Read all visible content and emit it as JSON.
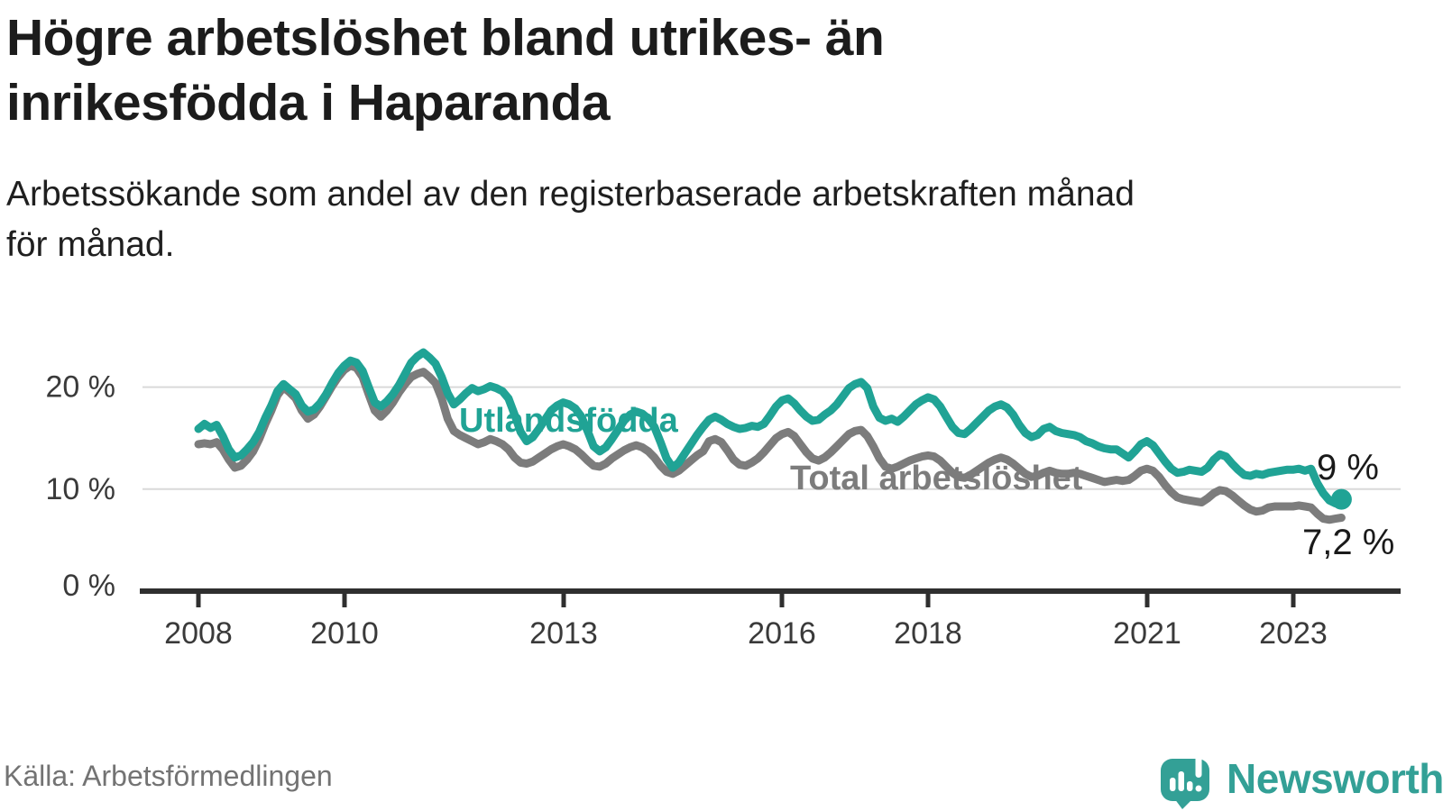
{
  "header": {
    "title_lines": [
      "Högre arbetslöshet bland utrikes- än",
      "inrikesfödda i Haparanda"
    ],
    "subtitle_lines": [
      "Arbetssökande som andel av den registerbaserade arbetskraften månad",
      "för månad."
    ]
  },
  "footer": {
    "source": "Källa: Arbetsförmedlingen",
    "brand": "Newsworthy"
  },
  "colors": {
    "teal_line": "#20a395",
    "gray_line": "#7c7c7c",
    "brand_teal": "#33a096",
    "axis": "#2f2f2f",
    "gridline": "#d9d9d9",
    "value_label": "#1a1a1a",
    "muted_text": "#737373"
  },
  "chart_data": {
    "type": "line",
    "title": "Högre arbetslöshet bland utrikes- än inrikesfödda i Haparanda",
    "subtitle": "Arbetssökande som andel av den registerbaserade arbetskraften månad för månad.",
    "xlabel": "",
    "ylabel": "",
    "x_start_year": 2008,
    "x_step_months": 1,
    "ylim": [
      0,
      26
    ],
    "grid": "horizontal",
    "y_ticks": [
      {
        "value": 0,
        "label": "0 %"
      },
      {
        "value": 10,
        "label": "10 %"
      },
      {
        "value": 20,
        "label": "20 %"
      }
    ],
    "x_ticks": [
      {
        "year": 2008,
        "label": "2008"
      },
      {
        "year": 2010,
        "label": "2010"
      },
      {
        "year": 2013,
        "label": "2013"
      },
      {
        "year": 2016,
        "label": "2016"
      },
      {
        "year": 2018,
        "label": "2018"
      },
      {
        "year": 2021,
        "label": "2021"
      },
      {
        "year": 2023,
        "label": "2023"
      }
    ],
    "series": [
      {
        "name": "Total arbetslöshet",
        "color": "#7c7c7c",
        "end_label": "7,2 %",
        "end_dot": false,
        "values": [
          14.4,
          14.5,
          14.4,
          14.6,
          13.9,
          12.9,
          12.1,
          12.3,
          12.9,
          13.7,
          14.9,
          16.4,
          17.7,
          19.2,
          20.0,
          19.5,
          18.9,
          17.7,
          16.9,
          17.3,
          18.1,
          19.1,
          20.1,
          21.0,
          21.7,
          22.1,
          21.9,
          21.0,
          19.3,
          17.7,
          17.1,
          17.7,
          18.5,
          19.5,
          20.3,
          21.0,
          21.3,
          21.5,
          21.0,
          20.4,
          18.9,
          16.9,
          15.7,
          15.3,
          15.0,
          14.7,
          14.4,
          14.6,
          14.9,
          14.7,
          14.4,
          13.9,
          13.1,
          12.6,
          12.5,
          12.7,
          13.1,
          13.5,
          13.9,
          14.2,
          14.4,
          14.2,
          13.9,
          13.4,
          12.8,
          12.3,
          12.2,
          12.5,
          13.0,
          13.4,
          13.8,
          14.1,
          14.3,
          14.1,
          13.7,
          13.1,
          12.3,
          11.7,
          11.5,
          11.8,
          12.3,
          12.8,
          13.3,
          13.7,
          14.7,
          14.9,
          14.6,
          13.8,
          12.9,
          12.4,
          12.3,
          12.6,
          13.0,
          13.6,
          14.3,
          15.0,
          15.4,
          15.6,
          15.2,
          14.4,
          13.6,
          13.0,
          12.8,
          13.1,
          13.6,
          14.2,
          14.8,
          15.4,
          15.7,
          15.8,
          15.2,
          14.2,
          13.0,
          12.2,
          12.0,
          12.2,
          12.5,
          12.8,
          13.0,
          13.2,
          13.3,
          13.2,
          12.8,
          12.2,
          11.6,
          11.2,
          11.1,
          11.4,
          11.8,
          12.2,
          12.6,
          12.9,
          13.1,
          12.9,
          12.5,
          12.0,
          11.5,
          11.2,
          11.3,
          11.6,
          11.8,
          11.6,
          11.5,
          11.5,
          11.6,
          11.5,
          11.3,
          11.1,
          10.9,
          10.7,
          10.8,
          10.9,
          10.8,
          10.9,
          11.3,
          11.8,
          12.0,
          11.8,
          11.2,
          10.4,
          9.7,
          9.2,
          9.0,
          8.9,
          8.8,
          8.7,
          9.1,
          9.6,
          9.9,
          9.8,
          9.4,
          8.9,
          8.4,
          8.0,
          7.8,
          7.9,
          8.2,
          8.3,
          8.3,
          8.3,
          8.3,
          8.4,
          8.3,
          8.2,
          7.6,
          7.1,
          7.0,
          7.1,
          7.2
        ]
      },
      {
        "name": "Utlandsfödda",
        "color": "#20a395",
        "end_label": "9 %",
        "end_dot": true,
        "values": [
          15.9,
          16.4,
          16.0,
          16.3,
          15.2,
          13.9,
          13.1,
          13.3,
          13.9,
          14.6,
          15.6,
          17.0,
          18.2,
          19.6,
          20.3,
          19.8,
          19.3,
          18.2,
          17.6,
          17.8,
          18.4,
          19.3,
          20.4,
          21.4,
          22.1,
          22.6,
          22.4,
          21.6,
          20.0,
          18.5,
          18.1,
          18.6,
          19.3,
          20.2,
          21.3,
          22.4,
          23.0,
          23.4,
          22.9,
          22.3,
          21.0,
          19.4,
          18.3,
          18.8,
          19.4,
          19.9,
          19.6,
          19.8,
          20.1,
          19.9,
          19.6,
          18.9,
          17.3,
          15.6,
          14.7,
          15.1,
          15.9,
          16.8,
          17.7,
          18.2,
          18.5,
          18.3,
          17.9,
          17.1,
          15.7,
          14.2,
          13.7,
          14.1,
          14.9,
          15.8,
          16.7,
          17.3,
          17.6,
          17.4,
          16.9,
          16.1,
          14.6,
          13.0,
          12.1,
          12.6,
          13.5,
          14.4,
          15.3,
          16.1,
          16.8,
          17.1,
          16.8,
          16.4,
          16.1,
          15.9,
          16.0,
          16.2,
          16.1,
          16.4,
          17.2,
          18.1,
          18.7,
          18.9,
          18.4,
          17.7,
          17.1,
          16.7,
          16.8,
          17.3,
          17.7,
          18.3,
          19.1,
          19.9,
          20.3,
          20.5,
          19.9,
          18.1,
          17.0,
          16.7,
          16.9,
          16.6,
          17.1,
          17.7,
          18.3,
          18.7,
          19.0,
          18.8,
          18.1,
          17.1,
          16.1,
          15.5,
          15.4,
          15.9,
          16.5,
          17.1,
          17.7,
          18.1,
          18.3,
          18.0,
          17.3,
          16.3,
          15.5,
          15.1,
          15.3,
          15.9,
          16.1,
          15.7,
          15.5,
          15.4,
          15.3,
          15.1,
          14.7,
          14.5,
          14.2,
          14.0,
          13.9,
          13.9,
          13.5,
          13.1,
          13.7,
          14.4,
          14.7,
          14.3,
          13.5,
          12.7,
          12.0,
          11.6,
          11.7,
          11.9,
          11.8,
          11.7,
          12.1,
          12.9,
          13.4,
          13.2,
          12.5,
          11.9,
          11.4,
          11.3,
          11.5,
          11.4,
          11.6,
          11.7,
          11.8,
          11.9,
          11.9,
          12.0,
          11.8,
          12.0,
          10.6,
          9.6,
          8.9,
          8.6,
          9.0
        ]
      }
    ],
    "legend_position": "inline-labels"
  }
}
